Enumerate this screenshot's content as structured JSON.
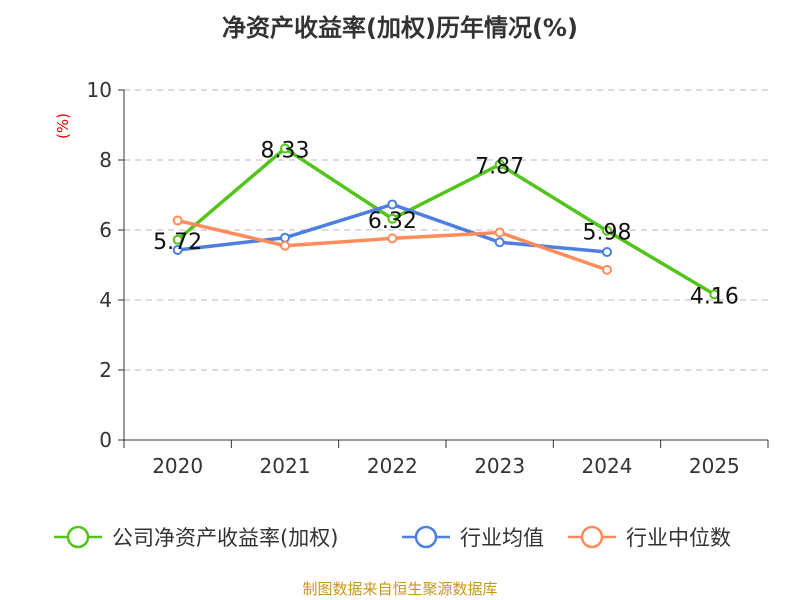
{
  "chart_data": {
    "type": "line",
    "title": "净资产收益率(加权)历年情况(%)",
    "ylabel": "(%)",
    "xlabel": "",
    "ylim": [
      0,
      10
    ],
    "yticks": [
      "0",
      "2",
      "4",
      "6",
      "8",
      "10"
    ],
    "categories": [
      "2020",
      "2021",
      "2022",
      "2023",
      "2024",
      "2025"
    ],
    "grid": true,
    "legend_position": "bottom",
    "series": [
      {
        "name": "公司净资产收益率(加权)",
        "color": "#52c41a",
        "values": [
          5.72,
          8.33,
          6.32,
          7.87,
          5.98,
          4.16
        ],
        "labels": [
          "5.72",
          "8.33",
          "6.32",
          "7.87",
          "5.98",
          "4.16"
        ]
      },
      {
        "name": "行业均值",
        "color": "#4c7fe0",
        "values": [
          5.43,
          5.78,
          6.73,
          5.65,
          5.37,
          null
        ]
      },
      {
        "name": "行业中位数",
        "color": "#ff8c5a",
        "values": [
          6.27,
          5.55,
          5.76,
          5.93,
          4.86,
          null
        ]
      }
    ]
  },
  "source": "制图数据来自恒生聚源数据库"
}
